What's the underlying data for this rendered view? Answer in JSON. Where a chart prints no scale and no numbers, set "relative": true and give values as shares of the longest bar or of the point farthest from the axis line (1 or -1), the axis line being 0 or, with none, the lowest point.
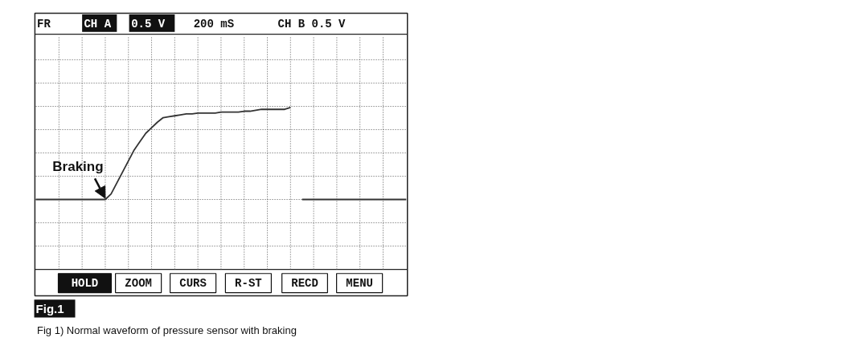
{
  "chart_data": {
    "type": "line",
    "relative": true,
    "grid": true,
    "line_style": "solid",
    "categories": [
      null,
      null,
      null,
      null,
      null,
      null,
      null,
      null,
      null,
      null,
      null,
      null,
      null,
      null,
      null,
      null,
      null,
      null,
      null,
      null,
      null,
      null,
      null,
      null,
      null,
      null,
      null,
      null,
      null,
      null,
      null,
      null,
      null,
      null,
      null,
      null,
      null,
      null,
      null,
      null,
      null,
      null,
      null,
      null,
      null,
      null,
      null,
      null,
      null,
      null,
      null,
      null,
      null,
      null,
      null,
      null,
      null,
      null,
      null,
      null,
      null,
      null,
      null,
      null,
      null
    ],
    "series": [
      {
        "color": "#333333",
        "values": [
          0,
          0,
          0,
          0,
          0,
          0,
          0,
          0,
          0,
          0,
          0,
          0,
          0,
          0.06,
          0.18,
          0.3,
          0.42,
          0.54,
          0.63,
          0.72,
          0.78,
          0.84,
          0.89,
          0.9,
          0.91,
          0.92,
          0.93,
          0.93,
          0.94,
          0.94,
          0.94,
          0.94,
          0.95,
          0.95,
          0.95,
          0.95,
          0.96,
          0.96,
          0.97,
          0.98,
          0.98,
          0.98,
          0.98,
          0.98,
          1.0,
          null,
          null,
          null,
          null,
          null,
          null,
          null,
          null,
          null,
          null,
          null,
          null,
          null,
          null,
          null,
          null,
          null,
          null,
          null,
          null
        ]
      },
      {
        "color": "#333333",
        "values": [
          null,
          null,
          null,
          null,
          null,
          null,
          null,
          null,
          null,
          null,
          null,
          null,
          null,
          null,
          null,
          null,
          null,
          null,
          null,
          null,
          null,
          null,
          null,
          null,
          null,
          null,
          null,
          null,
          null,
          null,
          null,
          null,
          null,
          null,
          null,
          null,
          null,
          null,
          null,
          null,
          null,
          null,
          null,
          null,
          null,
          null,
          0,
          0,
          0,
          0,
          0,
          0,
          0,
          0,
          0,
          0,
          0,
          0,
          0,
          0,
          0,
          0,
          0,
          0,
          0
        ]
      }
    ],
    "annotations": [
      "FR",
      "CH A",
      "0.5 V",
      "200 mS",
      "CH B 0.5 V",
      "Braking",
      "HOLD",
      "ZOOM",
      "CURS",
      "R-ST",
      "RECD",
      "MENU",
      "Fig.1",
      "Fig 1) Normal waveform of pressure sensor with braking"
    ]
  }
}
